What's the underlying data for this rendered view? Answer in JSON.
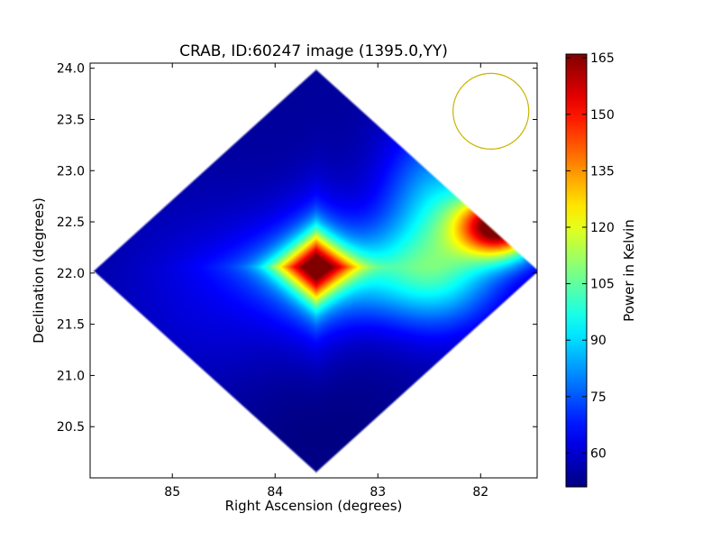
{
  "chart_data": {
    "type": "heatmap",
    "title": "CRAB, ID:60247 image (1395.0,YY)",
    "xlabel": "Right Ascension (degrees)",
    "ylabel": "Declination (degrees)",
    "xlim": [
      85.8,
      81.45
    ],
    "ylim": [
      20.0,
      24.05
    ],
    "x_ticks": [
      85,
      84,
      83,
      82
    ],
    "y_ticks": [
      20.5,
      21.0,
      21.5,
      22.0,
      22.5,
      23.0,
      23.5,
      24.0
    ],
    "x_tick_labels": [
      "85",
      "84",
      "83",
      "82"
    ],
    "y_tick_labels": [
      "20.5",
      "21.0",
      "21.5",
      "22.0",
      "22.5",
      "23.0",
      "23.5",
      "24.0"
    ],
    "colorbar": {
      "label": "Power in Kelvin",
      "range": [
        51,
        166
      ],
      "ticks": [
        60,
        75,
        90,
        105,
        120,
        135,
        150,
        165
      ],
      "tick_labels": [
        "60",
        "75",
        "90",
        "105",
        "120",
        "135",
        "150",
        "165"
      ],
      "colormap": "jet"
    },
    "coverage_center": [
      83.6,
      22.02
    ],
    "coverage_half_diagonal": {
      "ra": 2.18,
      "dec": 1.98
    },
    "background_level": 54,
    "sources": [
      {
        "ra": 83.6,
        "dec": 22.06,
        "peak": 152
      },
      {
        "ra": 81.8,
        "dec": 22.46,
        "peak": 163
      }
    ],
    "beam": {
      "ra": 81.9,
      "dec": 23.58,
      "radius_deg": 0.37,
      "color": "#c8b400"
    },
    "colors": {
      "frame": "#000000",
      "background": "#ffffff"
    }
  }
}
